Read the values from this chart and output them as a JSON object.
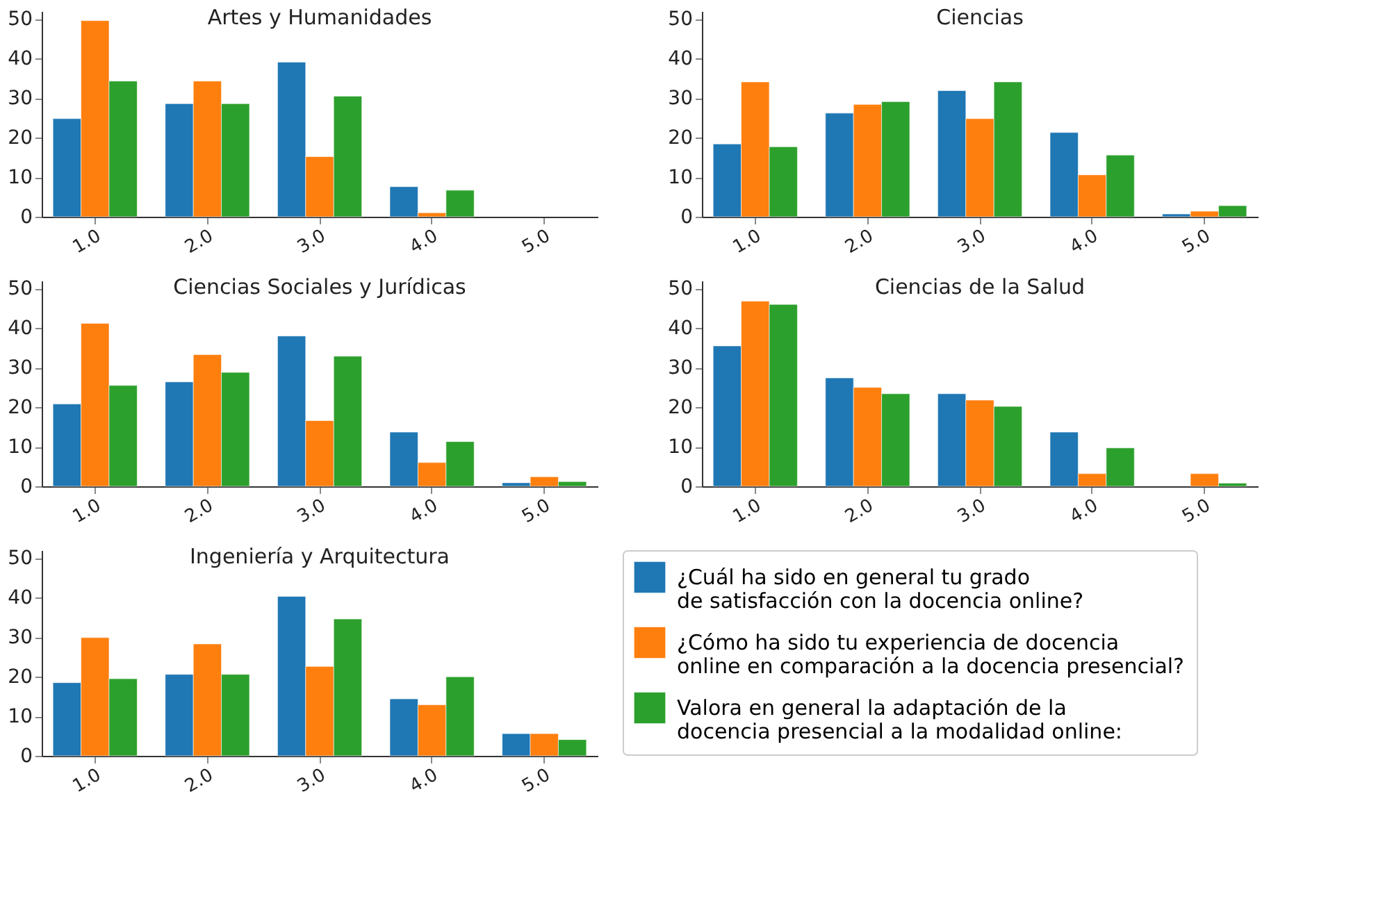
{
  "chart_data": [
    {
      "type": "bar",
      "title": "Artes y Humanidades",
      "categories": [
        "1.0",
        "2.0",
        "3.0",
        "4.0",
        "5.0"
      ],
      "ylim": [
        0,
        52
      ],
      "yticks": [
        0,
        10,
        20,
        30,
        40,
        50
      ],
      "grid": false,
      "legend": false,
      "series": [
        {
          "color": "#1f77b4",
          "values": [
            24.8,
            28.6,
            39.1,
            7.6,
            null
          ]
        },
        {
          "color": "#ff7f0e",
          "values": [
            49.6,
            34.3,
            15.2,
            1.0,
            null
          ]
        },
        {
          "color": "#2ca02c",
          "values": [
            34.3,
            28.6,
            30.5,
            6.7,
            null
          ]
        }
      ]
    },
    {
      "type": "bar",
      "title": "Ciencias",
      "categories": [
        "1.0",
        "2.0",
        "3.0",
        "4.0",
        "5.0"
      ],
      "ylim": [
        0,
        52
      ],
      "yticks": [
        0,
        10,
        20,
        30,
        40,
        50
      ],
      "grid": false,
      "legend": false,
      "series": [
        {
          "color": "#1f77b4",
          "values": [
            18.4,
            26.2,
            31.9,
            21.3,
            0.7
          ]
        },
        {
          "color": "#ff7f0e",
          "values": [
            34.1,
            28.4,
            24.8,
            10.6,
            1.4
          ]
        },
        {
          "color": "#2ca02c",
          "values": [
            17.7,
            29.1,
            34.1,
            15.6,
            2.8
          ]
        }
      ]
    },
    {
      "type": "bar",
      "title": "Ciencias Sociales y Jurídicas",
      "categories": [
        "1.0",
        "2.0",
        "3.0",
        "4.0",
        "5.0"
      ],
      "ylim": [
        0,
        52
      ],
      "yticks": [
        0,
        10,
        20,
        30,
        40,
        50
      ],
      "grid": false,
      "legend": false,
      "series": [
        {
          "color": "#1f77b4",
          "values": [
            20.8,
            26.4,
            38.0,
            13.7,
            0.9
          ]
        },
        {
          "color": "#ff7f0e",
          "values": [
            41.2,
            33.3,
            16.6,
            6.0,
            2.4
          ]
        },
        {
          "color": "#2ca02c",
          "values": [
            25.5,
            28.8,
            32.9,
            11.3,
            1.2
          ]
        }
      ]
    },
    {
      "type": "bar",
      "title": "Ciencias de la Salud",
      "categories": [
        "1.0",
        "2.0",
        "3.0",
        "4.0",
        "5.0"
      ],
      "ylim": [
        0,
        52
      ],
      "yticks": [
        0,
        10,
        20,
        30,
        40,
        50
      ],
      "grid": false,
      "legend": false,
      "series": [
        {
          "color": "#1f77b4",
          "values": [
            35.5,
            27.4,
            23.4,
            13.7,
            null
          ]
        },
        {
          "color": "#ff7f0e",
          "values": [
            46.8,
            25.0,
            21.8,
            3.2,
            3.2
          ]
        },
        {
          "color": "#2ca02c",
          "values": [
            46.0,
            23.4,
            20.2,
            9.7,
            0.8
          ]
        }
      ]
    },
    {
      "type": "bar",
      "title": "Ingeniería y Arquitectura",
      "categories": [
        "1.0",
        "2.0",
        "3.0",
        "4.0",
        "5.0"
      ],
      "ylim": [
        0,
        52
      ],
      "yticks": [
        0,
        10,
        20,
        30,
        40,
        50
      ],
      "grid": false,
      "legend": "right",
      "series": [
        {
          "name": "¿Cuál ha sido en general tu grado\n de satisfacción con la docencia online?",
          "color": "#1f77b4",
          "values": [
            18.5,
            20.6,
            40.3,
            14.4,
            5.6
          ]
        },
        {
          "name": "¿Cómo ha sido tu experiencia de docencia\n online en comparación a la docencia presencial?",
          "color": "#ff7f0e",
          "values": [
            29.9,
            28.3,
            22.6,
            12.9,
            5.6
          ]
        },
        {
          "name": "Valora en general la adaptación de la\ndocencia presencial a la modalidad online:",
          "color": "#2ca02c",
          "values": [
            19.5,
            20.6,
            34.6,
            20.0,
            4.1
          ]
        }
      ]
    }
  ]
}
